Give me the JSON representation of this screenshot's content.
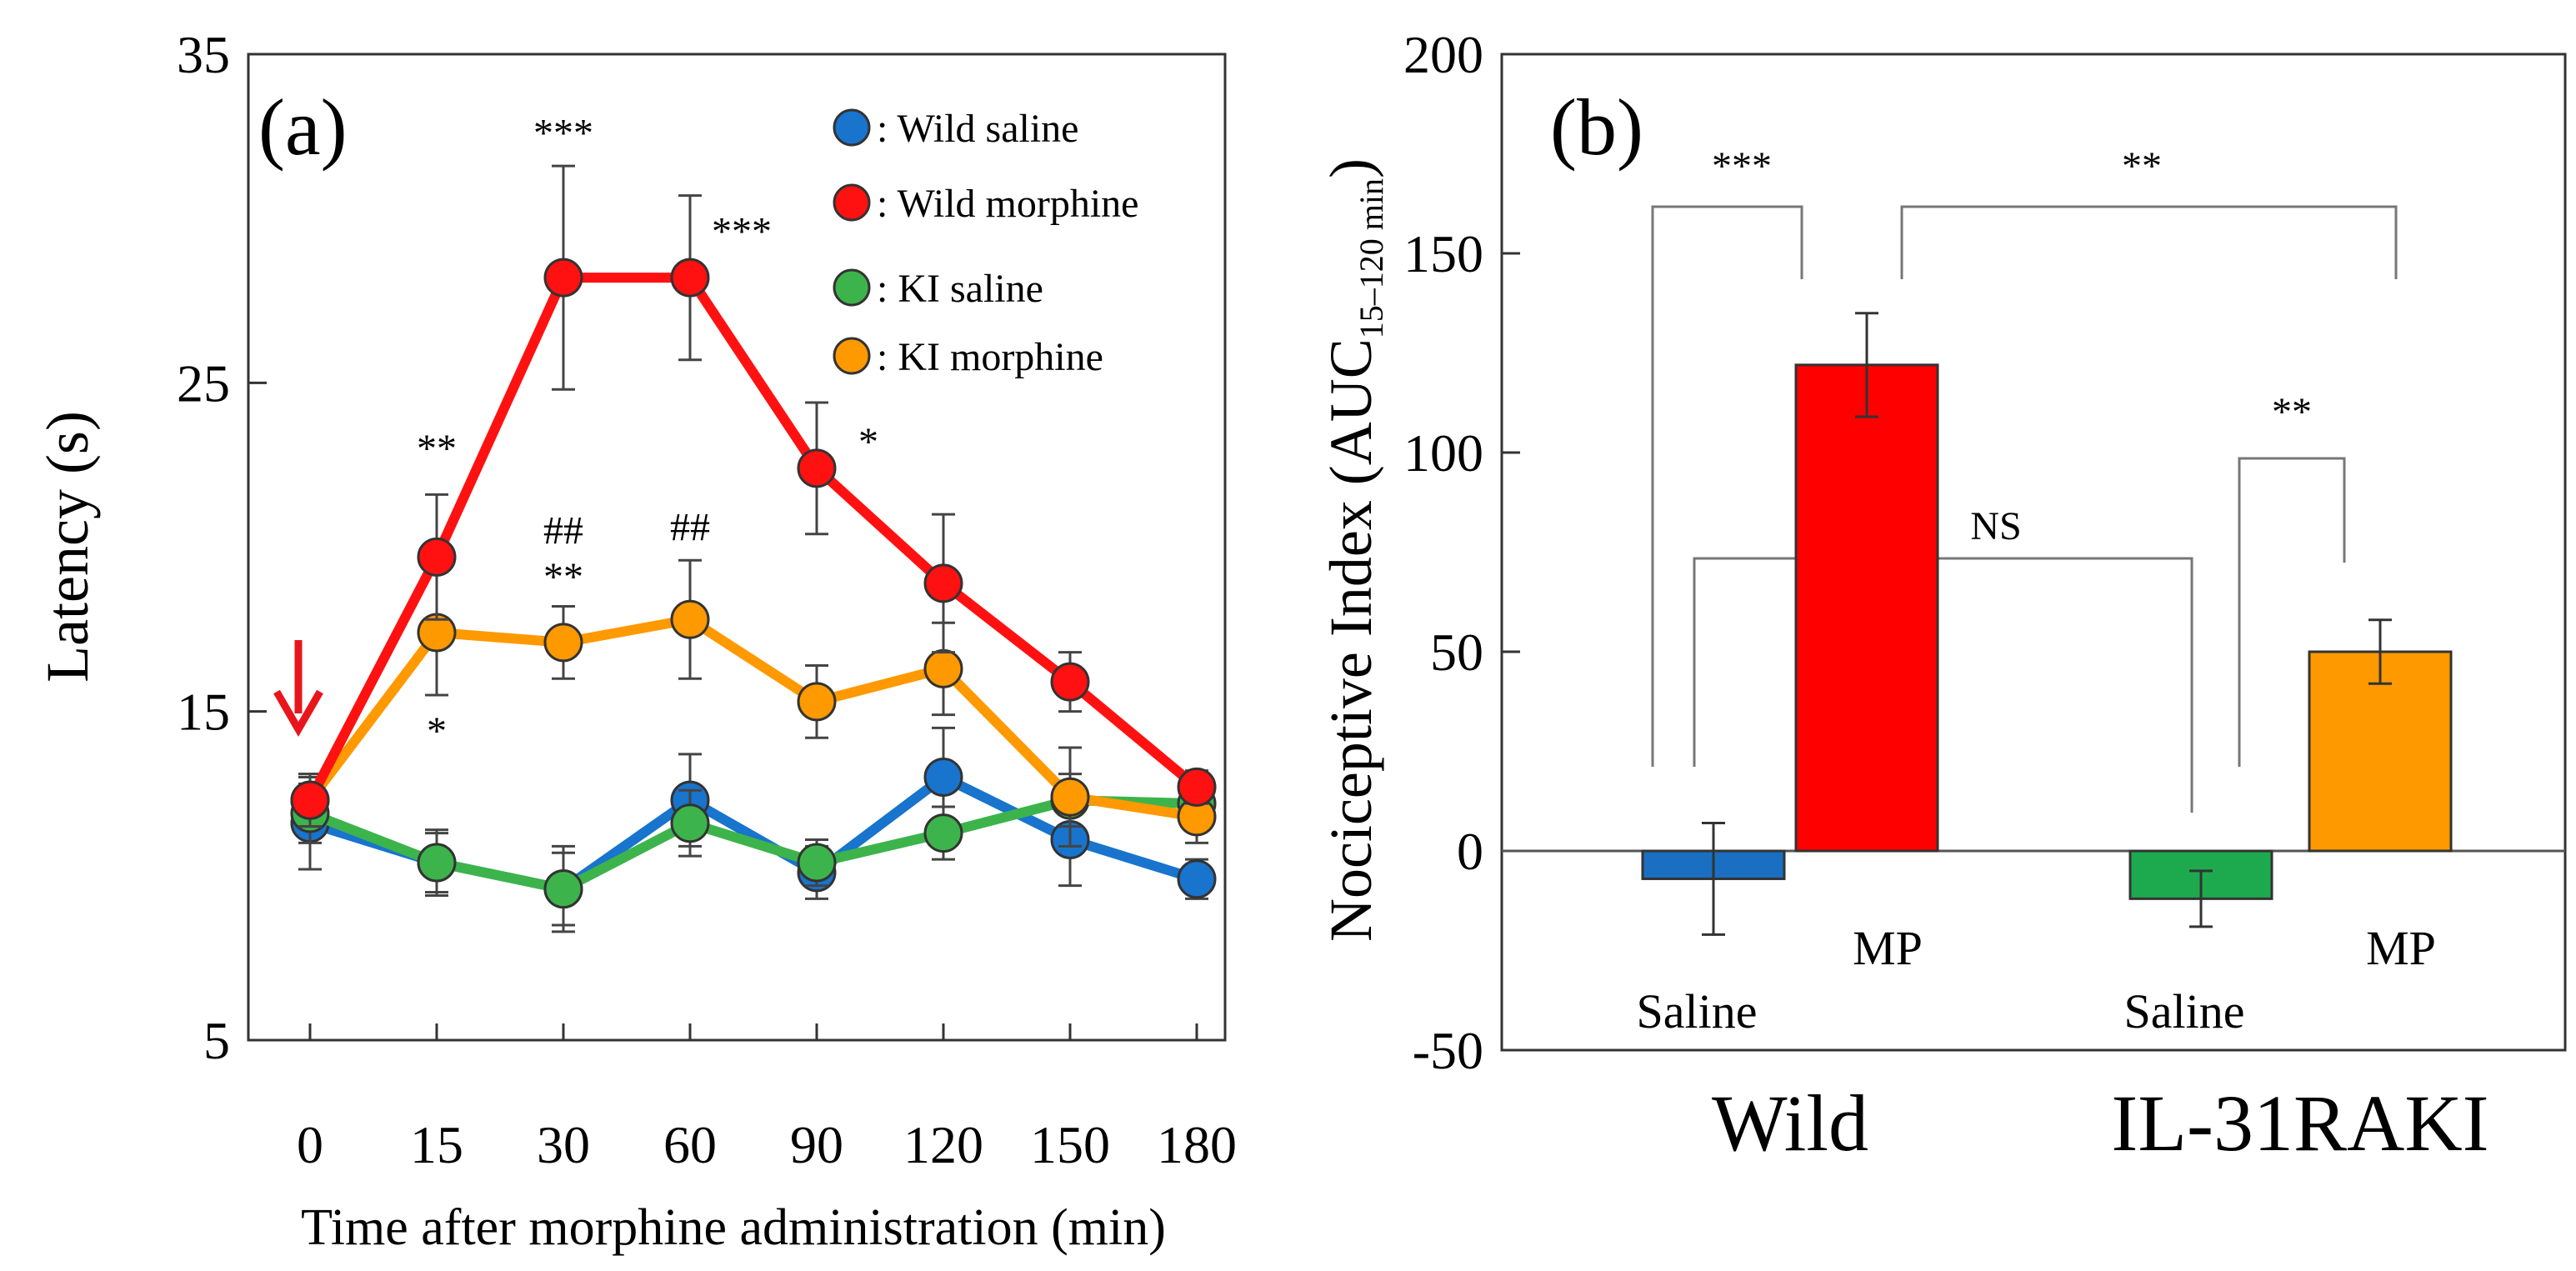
{
  "chart_data": [
    {
      "panel": "(a)",
      "type": "line",
      "xlabel": "Time after morphine administration (min)",
      "ylabel": "Latency (s)",
      "ylim": [
        5,
        35
      ],
      "yticks": [
        "5",
        "15",
        "25",
        "35"
      ],
      "categories": [
        "0",
        "15",
        "30",
        "60",
        "90",
        "120",
        "150",
        "180"
      ],
      "legend_placement": "top-right",
      "series": [
        {
          "name": ": Wild saline",
          "color": "#1874CD",
          "values": [
            11.6,
            10.4,
            9.6,
            12.3,
            10.1,
            13.0,
            11.1,
            9.9
          ],
          "errors": [
            1.4,
            1.0,
            1.3,
            1.4,
            0.8,
            1.5,
            1.4,
            0.6
          ]
        },
        {
          "name": ": KI saline",
          "color": "#3CB44B",
          "values": [
            11.9,
            10.4,
            9.6,
            11.6,
            10.4,
            11.3,
            12.3,
            12.2
          ],
          "errors": [
            0.9,
            0.9,
            1.1,
            1.0,
            0.7,
            0.8,
            0.8,
            0.7
          ]
        },
        {
          "name": ": KI morphine",
          "color": "#FF9900",
          "values": [
            12.3,
            17.4,
            17.1,
            17.8,
            15.3,
            16.3,
            12.4,
            11.8
          ],
          "errors": [
            0.8,
            1.9,
            1.1,
            1.8,
            1.1,
            1.4,
            1.5,
            0.8
          ]
        },
        {
          "name": ": Wild morphine",
          "color": "#FF1111",
          "values": [
            12.3,
            19.7,
            28.2,
            28.2,
            22.4,
            18.9,
            15.9,
            12.7
          ],
          "errors": [
            0.8,
            1.9,
            3.4,
            2.5,
            2.0,
            2.1,
            0.9,
            0.5
          ]
        }
      ],
      "annotations": [
        {
          "text": "**",
          "category": "15",
          "y": 22.6
        },
        {
          "text": "***",
          "category": "30",
          "y": 32.2
        },
        {
          "text": "***",
          "category": "60",
          "y": 29.2,
          "offset": "right"
        },
        {
          "text": "*",
          "category": "90",
          "y": 22.8,
          "offset": "right"
        },
        {
          "text": "##",
          "category": "30",
          "y": 20.1
        },
        {
          "text": "**",
          "category": "30",
          "y": 18.7
        },
        {
          "text": "##",
          "category": "60",
          "y": 20.2
        },
        {
          "text": "*",
          "category": "15",
          "y": 14.0
        }
      ],
      "arrow": {
        "category": "0",
        "color": "#E8161B",
        "label": ""
      }
    },
    {
      "panel": "(b)",
      "type": "bar",
      "ylabel": "Nociceptive Index (AUC",
      "ylabel_subscript": "15–120 min",
      "ylabel_close": ")",
      "ylim": [
        -50,
        200
      ],
      "yticks": [
        "-50",
        "0",
        "50",
        "100",
        "150",
        "200"
      ],
      "groups": [
        "Wild",
        "IL-31RAKI"
      ],
      "bars": [
        {
          "group": "Wild",
          "label": "Saline",
          "value": -7,
          "error": 14,
          "color": "#1A6FC2"
        },
        {
          "group": "Wild",
          "label": "MP",
          "value": 122,
          "error": 13,
          "color": "#FF0000"
        },
        {
          "group": "IL-31RAKI",
          "label": "Saline",
          "value": -12,
          "error": 7,
          "color": "#1DAA4E"
        },
        {
          "group": "IL-31RAKI",
          "label": "MP",
          "value": 50,
          "error": 8,
          "color": "#FF9900"
        }
      ],
      "significance": [
        {
          "text": "***",
          "between": [
            "Wild Saline",
            "Wild MP"
          ]
        },
        {
          "text": "**",
          "between": [
            "Wild MP",
            "IL-31RAKI MP"
          ]
        },
        {
          "text": "**",
          "between": [
            "IL-31RAKI Saline",
            "IL-31RAKI MP"
          ]
        },
        {
          "text": "NS",
          "between": [
            "Wild Saline",
            "IL-31RAKI Saline"
          ]
        }
      ]
    }
  ]
}
